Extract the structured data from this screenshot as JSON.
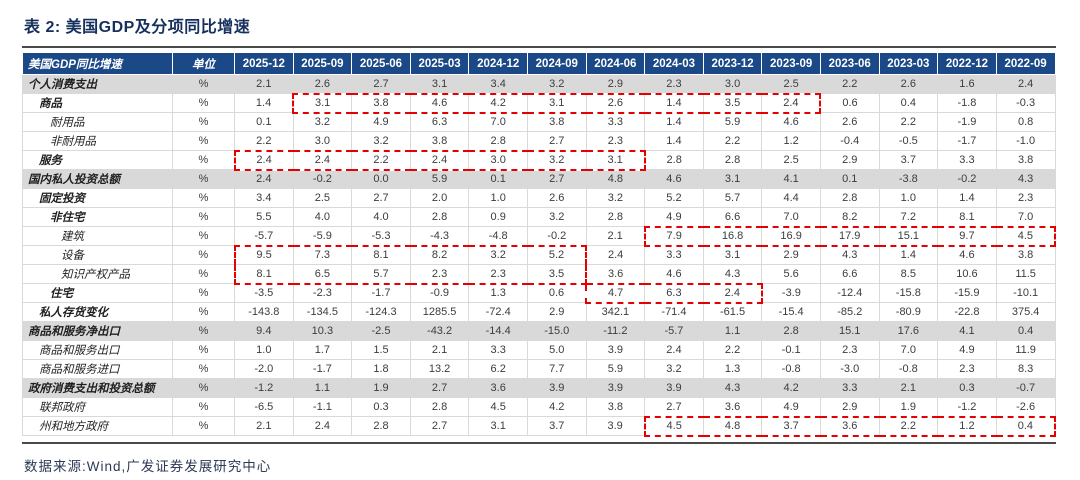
{
  "title": "表 2: 美国GDP及分项同比增速",
  "footer": "数据来源:Wind,广发证券发展研究中心",
  "colors": {
    "header_bg": "#1b4887",
    "title_color": "#15305c",
    "section_row_bg": "#d9d9d9",
    "highlight_border": "#e60000",
    "grid_line": "#d9d9d9",
    "rule_line": "#4a4a4a"
  },
  "table": {
    "header": {
      "label": "美国GDP同比增速",
      "unit": "单位",
      "quarters": [
        "2025-12",
        "2025-09",
        "2025-06",
        "2025-03",
        "2024-12",
        "2024-09",
        "2024-06",
        "2024-03",
        "2023-12",
        "2023-09",
        "2023-06",
        "2023-03",
        "2022-12",
        "2022-09"
      ]
    },
    "rows": [
      {
        "label": "个人消费支出",
        "indent": 0,
        "bold": true,
        "section": true,
        "unit": "%",
        "values": [
          "2.1",
          "2.6",
          "2.7",
          "3.1",
          "3.4",
          "3.2",
          "2.9",
          "2.3",
          "3.0",
          "2.5",
          "2.2",
          "2.6",
          "1.6",
          "2.4"
        ]
      },
      {
        "label": "商品",
        "indent": 1,
        "bold": true,
        "section": false,
        "unit": "%",
        "values": [
          "1.4",
          "3.1",
          "3.8",
          "4.6",
          "4.2",
          "3.1",
          "2.6",
          "1.4",
          "3.5",
          "2.4",
          "0.6",
          "0.4",
          "-1.8",
          "-0.3"
        ]
      },
      {
        "label": "耐用品",
        "indent": 2,
        "bold": false,
        "section": false,
        "unit": "%",
        "values": [
          "0.1",
          "3.2",
          "4.9",
          "6.3",
          "7.0",
          "3.8",
          "3.3",
          "1.4",
          "5.9",
          "4.6",
          "2.6",
          "2.2",
          "-1.9",
          "0.8"
        ]
      },
      {
        "label": "非耐用品",
        "indent": 2,
        "bold": false,
        "section": false,
        "unit": "%",
        "values": [
          "2.2",
          "3.0",
          "3.2",
          "3.8",
          "2.8",
          "2.7",
          "2.3",
          "1.4",
          "2.2",
          "1.2",
          "-0.4",
          "-0.5",
          "-1.7",
          "-1.0"
        ]
      },
      {
        "label": "服务",
        "indent": 1,
        "bold": true,
        "section": false,
        "unit": "%",
        "values": [
          "2.4",
          "2.4",
          "2.2",
          "2.4",
          "3.0",
          "3.2",
          "3.1",
          "2.8",
          "2.8",
          "2.5",
          "2.9",
          "3.7",
          "3.3",
          "3.8"
        ]
      },
      {
        "label": "国内私人投资总额",
        "indent": 0,
        "bold": true,
        "section": true,
        "unit": "%",
        "values": [
          "2.4",
          "-0.2",
          "0.0",
          "5.9",
          "0.1",
          "2.7",
          "4.8",
          "4.6",
          "3.1",
          "4.1",
          "0.1",
          "-3.8",
          "-0.2",
          "4.3"
        ]
      },
      {
        "label": "固定投资",
        "indent": 1,
        "bold": true,
        "section": false,
        "unit": "%",
        "values": [
          "3.4",
          "2.5",
          "2.7",
          "2.0",
          "1.0",
          "2.6",
          "3.2",
          "5.2",
          "5.7",
          "4.4",
          "2.8",
          "1.0",
          "1.4",
          "2.3"
        ]
      },
      {
        "label": "非住宅",
        "indent": 2,
        "bold": true,
        "section": false,
        "unit": "%",
        "values": [
          "5.5",
          "4.0",
          "4.0",
          "2.8",
          "0.9",
          "3.2",
          "2.8",
          "4.9",
          "6.6",
          "7.0",
          "8.2",
          "7.2",
          "8.1",
          "7.0"
        ]
      },
      {
        "label": "建筑",
        "indent": 3,
        "bold": false,
        "section": false,
        "unit": "%",
        "values": [
          "-5.7",
          "-5.9",
          "-5.3",
          "-4.3",
          "-4.8",
          "-0.2",
          "2.1",
          "7.9",
          "16.8",
          "16.9",
          "17.9",
          "15.1",
          "9.7",
          "4.5"
        ]
      },
      {
        "label": "设备",
        "indent": 3,
        "bold": false,
        "section": false,
        "unit": "%",
        "values": [
          "9.5",
          "7.3",
          "8.1",
          "8.2",
          "3.2",
          "5.2",
          "2.4",
          "3.3",
          "3.1",
          "2.9",
          "4.3",
          "1.4",
          "4.6",
          "3.8"
        ]
      },
      {
        "label": "知识产权产品",
        "indent": 3,
        "bold": false,
        "section": false,
        "unit": "%",
        "values": [
          "8.1",
          "6.5",
          "5.7",
          "2.3",
          "2.3",
          "3.5",
          "3.6",
          "4.6",
          "4.3",
          "5.6",
          "6.6",
          "8.5",
          "10.6",
          "11.5"
        ]
      },
      {
        "label": "住宅",
        "indent": 2,
        "bold": true,
        "section": false,
        "unit": "%",
        "values": [
          "-3.5",
          "-2.3",
          "-1.7",
          "-0.9",
          "1.3",
          "0.6",
          "4.7",
          "6.3",
          "2.4",
          "-3.9",
          "-12.4",
          "-15.8",
          "-15.9",
          "-10.1"
        ]
      },
      {
        "label": "私人存货变化",
        "indent": 1,
        "bold": true,
        "section": false,
        "unit": "%",
        "values": [
          "-143.8",
          "-134.5",
          "-124.3",
          "1285.5",
          "-72.4",
          "2.9",
          "342.1",
          "-71.4",
          "-61.5",
          "-15.4",
          "-85.2",
          "-80.9",
          "-22.8",
          "375.4"
        ]
      },
      {
        "label": "商品和服务净出口",
        "indent": 0,
        "bold": true,
        "section": true,
        "unit": "%",
        "values": [
          "9.4",
          "10.3",
          "-2.5",
          "-43.2",
          "-14.4",
          "-15.0",
          "-11.2",
          "-5.7",
          "1.1",
          "2.8",
          "15.1",
          "17.6",
          "4.1",
          "0.4"
        ]
      },
      {
        "label": "商品和服务出口",
        "indent": 1,
        "bold": false,
        "section": false,
        "unit": "%",
        "values": [
          "1.0",
          "1.7",
          "1.5",
          "2.1",
          "3.3",
          "5.0",
          "3.9",
          "2.4",
          "2.2",
          "-0.1",
          "2.3",
          "7.0",
          "4.9",
          "11.9"
        ]
      },
      {
        "label": "商品和服务进口",
        "indent": 1,
        "bold": false,
        "section": false,
        "unit": "%",
        "values": [
          "-2.0",
          "-1.7",
          "1.8",
          "13.2",
          "6.2",
          "7.7",
          "5.9",
          "3.2",
          "1.3",
          "-0.8",
          "-3.0",
          "-0.8",
          "2.3",
          "8.3"
        ]
      },
      {
        "label": "政府消费支出和投资总额",
        "indent": 0,
        "bold": true,
        "section": true,
        "unit": "%",
        "values": [
          "-1.2",
          "1.1",
          "1.9",
          "2.7",
          "3.6",
          "3.9",
          "3.9",
          "3.9",
          "4.3",
          "4.2",
          "3.3",
          "2.1",
          "0.3",
          "-0.7"
        ]
      },
      {
        "label": "联邦政府",
        "indent": 1,
        "bold": false,
        "section": false,
        "unit": "%",
        "values": [
          "-6.5",
          "-1.1",
          "0.3",
          "2.8",
          "4.5",
          "4.2",
          "3.8",
          "2.7",
          "3.6",
          "4.9",
          "2.9",
          "1.9",
          "-1.2",
          "-2.6"
        ]
      },
      {
        "label": "州和地方政府",
        "indent": 1,
        "bold": false,
        "section": false,
        "unit": "%",
        "values": [
          "2.1",
          "2.4",
          "2.8",
          "2.7",
          "3.1",
          "3.7",
          "3.9",
          "4.5",
          "4.8",
          "3.7",
          "3.6",
          "2.2",
          "1.2",
          "0.4"
        ]
      }
    ],
    "highlights": [
      {
        "row_start": 1,
        "row_end": 1,
        "col_start": 1,
        "col_end": 9
      },
      {
        "row_start": 4,
        "row_end": 4,
        "col_start": 0,
        "col_end": 6
      },
      {
        "row_start": 8,
        "row_end": 8,
        "col_start": 7,
        "col_end": 13
      },
      {
        "row_start": 9,
        "row_end": 10,
        "col_start": 0,
        "col_end": 5
      },
      {
        "row_start": 11,
        "row_end": 11,
        "col_start": 6,
        "col_end": 8
      },
      {
        "row_start": 18,
        "row_end": 18,
        "col_start": 7,
        "col_end": 13
      }
    ]
  }
}
